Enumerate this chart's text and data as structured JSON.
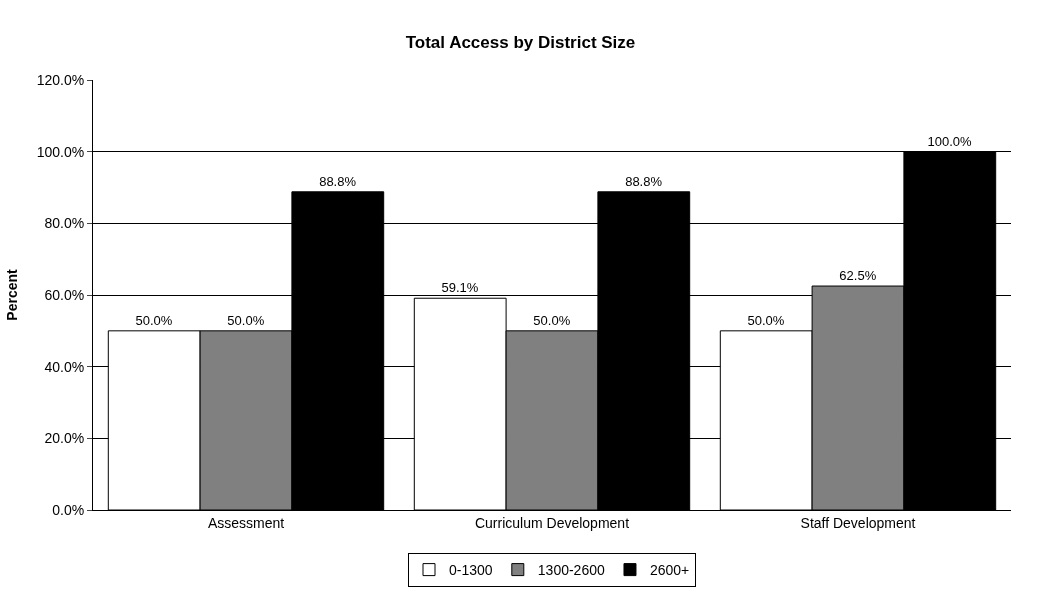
{
  "chart_data": {
    "type": "bar",
    "title": "Total Access by District Size",
    "ylabel": "Percent",
    "categories": [
      "Assessment",
      "Curriculum Development",
      "Staff Development"
    ],
    "series": [
      {
        "name": "0-1300",
        "color": "#ffffff",
        "values": [
          50.0,
          59.1,
          50.0
        ],
        "value_labels": [
          "50.0%",
          "59.1%",
          "50.0%"
        ]
      },
      {
        "name": "1300-2600",
        "color": "#808080",
        "values": [
          50.0,
          50.0,
          62.5
        ],
        "value_labels": [
          "50.0%",
          "50.0%",
          "62.5%"
        ]
      },
      {
        "name": "2600+",
        "color": "#000000",
        "values": [
          88.8,
          88.8,
          100.0
        ],
        "value_labels": [
          "88.8%",
          "88.8%",
          "100.0%"
        ]
      }
    ],
    "ylim": [
      0,
      120
    ],
    "yticks": [
      {
        "value": 0,
        "label": "0.0%"
      },
      {
        "value": 20,
        "label": "20.0%"
      },
      {
        "value": 40,
        "label": "40.0%"
      },
      {
        "value": 60,
        "label": "60.0%"
      },
      {
        "value": 80,
        "label": "80.0%"
      },
      {
        "value": 100,
        "label": "100.0%"
      },
      {
        "value": 120,
        "label": "120.0%"
      }
    ],
    "grid": "y",
    "legend": "bottom"
  }
}
